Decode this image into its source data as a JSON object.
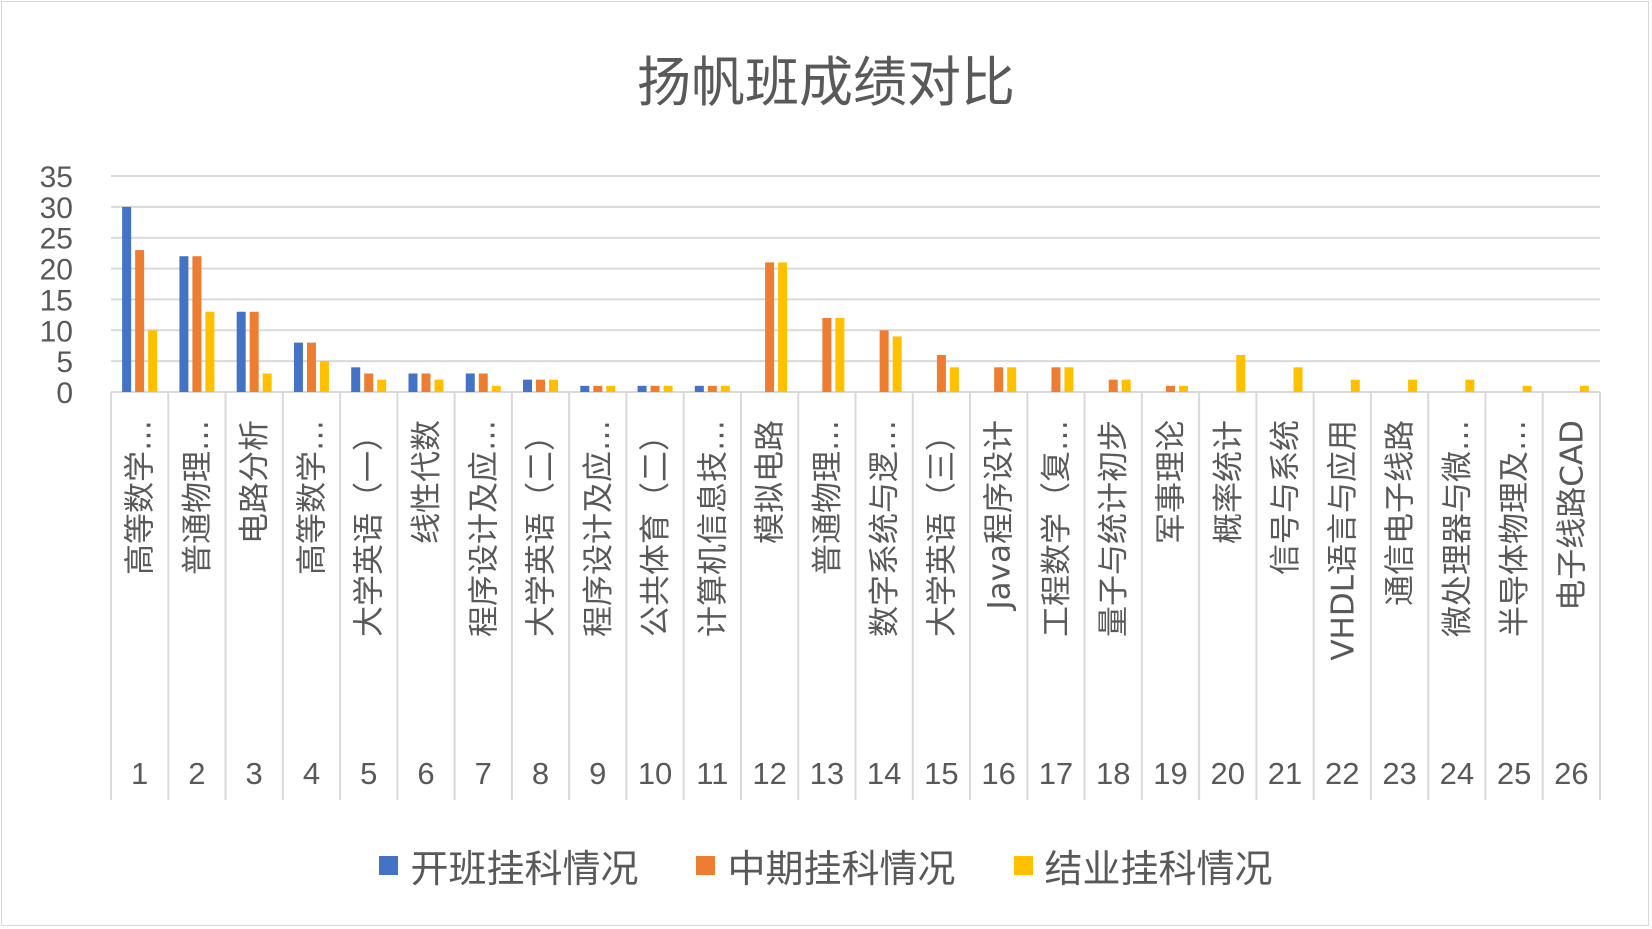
{
  "chart_data": {
    "type": "bar",
    "title": "扬帆班成绩对比",
    "ylim": [
      0,
      35
    ],
    "yticks": [
      0,
      5,
      10,
      15,
      20,
      25,
      30,
      35
    ],
    "grid": true,
    "legend_position": "bottom",
    "categories": [
      {
        "index": "1",
        "label": "高等数学…"
      },
      {
        "index": "2",
        "label": "普通物理…"
      },
      {
        "index": "3",
        "label": "电路分析"
      },
      {
        "index": "4",
        "label": "高等数学…"
      },
      {
        "index": "5",
        "label": "大学英语（一）"
      },
      {
        "index": "6",
        "label": "线性代数"
      },
      {
        "index": "7",
        "label": "程序设计及应…"
      },
      {
        "index": "8",
        "label": "大学英语（二）"
      },
      {
        "index": "9",
        "label": "程序设计及应…"
      },
      {
        "index": "10",
        "label": "公共体育（二）"
      },
      {
        "index": "11",
        "label": "计算机信息技…"
      },
      {
        "index": "12",
        "label": "模拟电路"
      },
      {
        "index": "13",
        "label": "普通物理…"
      },
      {
        "index": "14",
        "label": "数字系统与逻…"
      },
      {
        "index": "15",
        "label": "大学英语（三）"
      },
      {
        "index": "16",
        "label": "Java程序设计"
      },
      {
        "index": "17",
        "label": "工程数学（复…"
      },
      {
        "index": "18",
        "label": "量子与统计初步"
      },
      {
        "index": "19",
        "label": "军事理论"
      },
      {
        "index": "20",
        "label": "概率统计"
      },
      {
        "index": "21",
        "label": "信号与系统"
      },
      {
        "index": "22",
        "label": "VHDL语言与应用"
      },
      {
        "index": "23",
        "label": "通信电子线路"
      },
      {
        "index": "24",
        "label": "微处理器与微…"
      },
      {
        "index": "25",
        "label": "半导体物理及…"
      },
      {
        "index": "26",
        "label": "电子线路CAD"
      }
    ],
    "series": [
      {
        "name": "开班挂科情况",
        "color": "#4472c4",
        "values": [
          30,
          22,
          13,
          8,
          4,
          3,
          3,
          2,
          1,
          1,
          1,
          0,
          0,
          0,
          0,
          0,
          0,
          0,
          0,
          0,
          0,
          0,
          0,
          0,
          0,
          0
        ]
      },
      {
        "name": "中期挂科情况",
        "color": "#ed7d31",
        "values": [
          23,
          22,
          13,
          8,
          3,
          3,
          3,
          2,
          1,
          1,
          1,
          21,
          12,
          10,
          6,
          4,
          4,
          2,
          1,
          0,
          0,
          0,
          0,
          0,
          0,
          0
        ]
      },
      {
        "name": "结业挂科情况",
        "color": "#ffc000",
        "values": [
          10,
          13,
          3,
          5,
          2,
          2,
          1,
          2,
          1,
          1,
          1,
          21,
          12,
          9,
          4,
          4,
          4,
          2,
          1,
          6,
          4,
          2,
          2,
          2,
          1,
          1
        ]
      }
    ]
  }
}
